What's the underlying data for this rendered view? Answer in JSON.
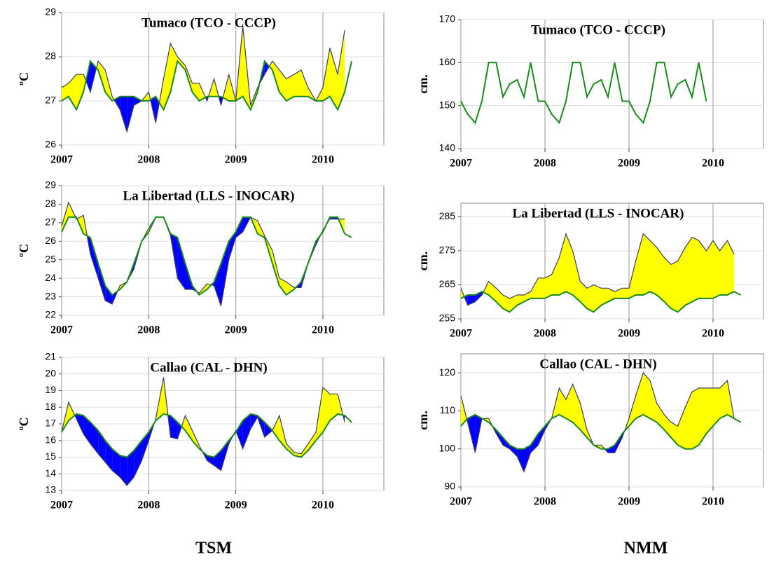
{
  "chart_data": [
    {
      "type": "line",
      "title": "Tumaco (TCO - CCCP)",
      "y_label": "ºC",
      "x": [
        2007,
        2007.08,
        2007.17,
        2007.25,
        2007.33,
        2007.42,
        2007.5,
        2007.58,
        2007.67,
        2007.75,
        2007.83,
        2007.92,
        2008,
        2008.08,
        2008.17,
        2008.25,
        2008.33,
        2008.42,
        2008.5,
        2008.58,
        2008.67,
        2008.75,
        2008.83,
        2008.92,
        2009,
        2009.08,
        2009.17,
        2009.25,
        2009.33,
        2009.42,
        2009.5,
        2009.58,
        2009.67,
        2009.75,
        2009.83,
        2009.92,
        2010,
        2010.08,
        2010.17,
        2010.25,
        2010.33,
        2010.42
      ],
      "series": [
        {
          "color": "#3b3b6b",
          "values": [
            27.3,
            27.4,
            27.6,
            27.6,
            27.2,
            27.9,
            27.7,
            27.1,
            26.8,
            26.3,
            26.9,
            27.0,
            27.2,
            26.5,
            27.5,
            28.3,
            28.0,
            27.8,
            27.4,
            27.4,
            27.0,
            27.5,
            26.9,
            27.6,
            27.0,
            28.7,
            26.9,
            27.3,
            27.6,
            27.9,
            27.7,
            27.5,
            27.6,
            27.7,
            27.3,
            27.0,
            27.3,
            28.2,
            27.6,
            28.6,
            null,
            null
          ]
        },
        {
          "color": "#1a8a1a",
          "values": [
            27.0,
            27.1,
            26.8,
            27.2,
            27.9,
            27.7,
            27.2,
            27.0,
            27.1,
            27.1,
            27.1,
            27.0,
            27.0,
            27.1,
            26.8,
            27.2,
            27.9,
            27.7,
            27.2,
            27.0,
            27.1,
            27.1,
            27.1,
            27.0,
            27.0,
            27.1,
            26.8,
            27.2,
            27.9,
            27.7,
            27.2,
            27.0,
            27.1,
            27.1,
            27.1,
            27.0,
            27.0,
            27.1,
            26.8,
            27.2,
            27.9,
            null
          ]
        }
      ],
      "fill_above": "#ffff00",
      "fill_below": "#0000ff",
      "xlim": [
        2007,
        2010.7
      ],
      "xticks": [
        2007,
        2008,
        2009,
        2010
      ],
      "ylim": [
        26,
        29
      ],
      "yticks": [
        26,
        27,
        28,
        29
      ],
      "grid": true
    },
    {
      "type": "line",
      "title": "La Libertad (LLS - INOCAR)",
      "y_label": "ºC",
      "x": [
        2007,
        2007.08,
        2007.17,
        2007.25,
        2007.33,
        2007.42,
        2007.5,
        2007.58,
        2007.67,
        2007.75,
        2007.83,
        2007.92,
        2008,
        2008.08,
        2008.17,
        2008.25,
        2008.33,
        2008.42,
        2008.5,
        2008.58,
        2008.67,
        2008.75,
        2008.83,
        2008.92,
        2009,
        2009.08,
        2009.17,
        2009.25,
        2009.33,
        2009.42,
        2009.5,
        2009.58,
        2009.67,
        2009.75,
        2009.83,
        2009.92,
        2010,
        2010.08,
        2010.17,
        2010.25,
        2010.33,
        2010.42
      ],
      "series": [
        {
          "color": "#3b3b6b",
          "values": [
            26.8,
            28.1,
            27.2,
            27.4,
            25.3,
            24.0,
            22.8,
            22.6,
            23.6,
            23.8,
            24.5,
            26.0,
            26.7,
            27.3,
            27.3,
            26.3,
            24.0,
            23.4,
            23.4,
            23.2,
            23.7,
            23.6,
            22.5,
            25.0,
            26.2,
            26.5,
            27.3,
            27.1,
            26.3,
            25.5,
            24.0,
            23.8,
            23.5,
            23.5,
            24.8,
            25.8,
            26.6,
            27.2,
            27.2,
            27.2,
            null,
            null
          ]
        },
        {
          "color": "#1a8a1a",
          "values": [
            26.5,
            27.3,
            27.3,
            26.4,
            26.2,
            24.8,
            23.6,
            23.1,
            23.4,
            23.8,
            24.8,
            26.0,
            26.5,
            27.3,
            27.3,
            26.4,
            26.2,
            24.8,
            23.6,
            23.1,
            23.4,
            23.8,
            24.8,
            26.0,
            26.5,
            27.3,
            27.3,
            26.4,
            26.2,
            24.8,
            23.6,
            23.1,
            23.4,
            23.8,
            24.8,
            26.0,
            26.5,
            27.3,
            27.3,
            26.4,
            26.2,
            null
          ]
        }
      ],
      "fill_above": "#ffff00",
      "fill_below": "#0000ff",
      "xlim": [
        2007,
        2010.7
      ],
      "xticks": [
        2007,
        2008,
        2009,
        2010
      ],
      "ylim": [
        22,
        29
      ],
      "yticks": [
        22,
        23,
        24,
        25,
        26,
        27,
        28,
        29
      ],
      "grid": true
    },
    {
      "type": "line",
      "title": "Callao (CAL - DHN)",
      "y_label": "ºC",
      "x": [
        2007,
        2007.08,
        2007.17,
        2007.25,
        2007.33,
        2007.42,
        2007.5,
        2007.58,
        2007.67,
        2007.75,
        2007.83,
        2007.92,
        2008,
        2008.08,
        2008.17,
        2008.25,
        2008.33,
        2008.42,
        2008.5,
        2008.58,
        2008.67,
        2008.75,
        2008.83,
        2008.92,
        2009,
        2009.08,
        2009.17,
        2009.25,
        2009.33,
        2009.42,
        2009.5,
        2009.58,
        2009.67,
        2009.75,
        2009.83,
        2009.92,
        2010,
        2010.08,
        2010.17,
        2010.25,
        2010.33,
        2010.42
      ],
      "series": [
        {
          "color": "#3b3b6b",
          "values": [
            16.5,
            18.3,
            17.3,
            16.4,
            15.8,
            15.2,
            14.7,
            14.2,
            13.8,
            13.3,
            13.8,
            14.8,
            16.0,
            17.3,
            19.8,
            16.2,
            16.1,
            17.5,
            16.6,
            15.7,
            14.8,
            14.5,
            14.2,
            15.8,
            16.6,
            15.5,
            16.7,
            17.4,
            16.2,
            16.6,
            17.5,
            15.8,
            15.3,
            15.2,
            15.8,
            16.5,
            19.2,
            18.8,
            18.8,
            17.1,
            null,
            null
          ]
        },
        {
          "color": "#1a8a1a",
          "values": [
            16.5,
            17.2,
            17.6,
            17.5,
            17.1,
            16.6,
            16.0,
            15.5,
            15.1,
            15.0,
            15.4,
            16.0,
            16.5,
            17.2,
            17.6,
            17.5,
            17.1,
            16.6,
            16.0,
            15.5,
            15.1,
            15.0,
            15.4,
            16.0,
            16.5,
            17.2,
            17.6,
            17.5,
            17.1,
            16.6,
            16.0,
            15.5,
            15.1,
            15.0,
            15.4,
            16.0,
            16.5,
            17.2,
            17.6,
            17.5,
            17.1,
            null
          ]
        }
      ],
      "fill_above": "#ffff00",
      "fill_below": "#0000ff",
      "xlim": [
        2007,
        2010.7
      ],
      "xticks": [
        2007,
        2008,
        2009,
        2010
      ],
      "ylim": [
        13,
        21
      ],
      "yticks": [
        13,
        14,
        15,
        16,
        17,
        18,
        19,
        20,
        21
      ],
      "grid": true
    },
    {
      "type": "line",
      "title": "Tumaco (TCO - CCCP)",
      "y_label": "cm.",
      "x": [
        2007,
        2007.08,
        2007.17,
        2007.25,
        2007.33,
        2007.42,
        2007.5,
        2007.58,
        2007.67,
        2007.75,
        2007.83,
        2007.92,
        2008,
        2008.08,
        2008.17,
        2008.25,
        2008.33,
        2008.42,
        2008.5,
        2008.58,
        2008.67,
        2008.75,
        2008.83,
        2008.92,
        2009,
        2009.08,
        2009.17,
        2009.25,
        2009.33,
        2009.42,
        2009.5,
        2009.58,
        2009.67,
        2009.75,
        2009.83,
        2009.92,
        2010,
        2010.08,
        2010.17,
        2010.25,
        2010.33,
        2010.42
      ],
      "series": [
        {
          "color": "#1a8a1a",
          "values": [
            151,
            148,
            146,
            151,
            160,
            160,
            152,
            155,
            156,
            152,
            160,
            151,
            151,
            148,
            146,
            151,
            160,
            160,
            152,
            155,
            156,
            152,
            160,
            151,
            151,
            148,
            146,
            151,
            160,
            160,
            152,
            155,
            156,
            152,
            160,
            151,
            null,
            null,
            null,
            null,
            null,
            null
          ]
        }
      ],
      "xlim": [
        2007,
        2010.6
      ],
      "xticks": [
        2007,
        2008,
        2009,
        2010
      ],
      "ylim": [
        140,
        170
      ],
      "yticks": [
        140,
        150,
        160,
        170
      ],
      "grid": true
    },
    {
      "type": "line",
      "title": "La Libertad (LLS - INOCAR)",
      "y_label": "cm.",
      "x": [
        2007,
        2007.08,
        2007.17,
        2007.25,
        2007.33,
        2007.42,
        2007.5,
        2007.58,
        2007.67,
        2007.75,
        2007.83,
        2007.92,
        2008,
        2008.08,
        2008.17,
        2008.25,
        2008.33,
        2008.42,
        2008.5,
        2008.58,
        2008.67,
        2008.75,
        2008.83,
        2008.92,
        2009,
        2009.08,
        2009.17,
        2009.25,
        2009.33,
        2009.42,
        2009.5,
        2009.58,
        2009.67,
        2009.75,
        2009.83,
        2009.92,
        2010,
        2010.08,
        2010.17,
        2010.25,
        2010.33,
        2010.42
      ],
      "series": [
        {
          "color": "#3b3b6b",
          "values": [
            264,
            259,
            260,
            262,
            266,
            264,
            262,
            261,
            262,
            262,
            263,
            267,
            267,
            268,
            273,
            280,
            275,
            266,
            264,
            265,
            264,
            264,
            263,
            264,
            264,
            272,
            280,
            278,
            276,
            273,
            271,
            272,
            276,
            279,
            278,
            275,
            278,
            275,
            278,
            274,
            null,
            null
          ]
        },
        {
          "color": "#1a8a1a",
          "values": [
            261,
            262,
            262,
            263,
            262,
            260,
            258,
            257,
            259,
            260,
            261,
            261,
            261,
            262,
            262,
            263,
            262,
            260,
            258,
            257,
            259,
            260,
            261,
            261,
            261,
            262,
            262,
            263,
            262,
            260,
            258,
            257,
            259,
            260,
            261,
            261,
            261,
            262,
            262,
            263,
            262,
            null
          ]
        }
      ],
      "fill_above": "#ffff00",
      "fill_below": "#0000ff",
      "xlim": [
        2007,
        2010.6
      ],
      "xticks": [
        2007,
        2008,
        2009,
        2010
      ],
      "ylim": [
        255,
        289
      ],
      "yticks": [
        255,
        265,
        275,
        285
      ],
      "grid": true
    },
    {
      "type": "line",
      "title": "Callao (CAL - DHN)",
      "y_label": "cm.",
      "x": [
        2007,
        2007.08,
        2007.17,
        2007.25,
        2007.33,
        2007.42,
        2007.5,
        2007.58,
        2007.67,
        2007.75,
        2007.83,
        2007.92,
        2008,
        2008.08,
        2008.17,
        2008.25,
        2008.33,
        2008.42,
        2008.5,
        2008.58,
        2008.67,
        2008.75,
        2008.83,
        2008.92,
        2009,
        2009.08,
        2009.17,
        2009.25,
        2009.33,
        2009.42,
        2009.5,
        2009.58,
        2009.67,
        2009.75,
        2009.83,
        2009.92,
        2010,
        2010.08,
        2010.17,
        2010.25,
        2010.33,
        2010.42
      ],
      "series": [
        {
          "color": "#3b3b6b",
          "values": [
            114,
            107,
            99,
            108,
            108,
            104,
            101,
            100,
            98,
            94,
            99,
            101,
            105,
            108,
            116,
            113,
            117,
            112,
            105,
            101,
            101,
            99,
            99,
            103,
            108,
            114,
            120,
            118,
            112,
            109,
            107,
            106,
            111,
            115,
            116,
            116,
            116,
            116,
            118,
            108,
            null,
            null
          ]
        },
        {
          "color": "#1a8a1a",
          "values": [
            106,
            108,
            109,
            108,
            107,
            105,
            103,
            101,
            100,
            100,
            101,
            104,
            106,
            108,
            109,
            108,
            107,
            105,
            103,
            101,
            100,
            100,
            101,
            104,
            106,
            108,
            109,
            108,
            107,
            105,
            103,
            101,
            100,
            100,
            101,
            104,
            106,
            108,
            109,
            108,
            107,
            null
          ]
        }
      ],
      "fill_above": "#ffff00",
      "fill_below": "#0000ff",
      "xlim": [
        2007,
        2010.6
      ],
      "xticks": [
        2007,
        2008,
        2009,
        2010
      ],
      "ylim": [
        90,
        125
      ],
      "yticks": [
        90,
        100,
        110,
        120
      ],
      "grid": true
    }
  ],
  "captions": [
    "TSM",
    "NMM"
  ]
}
